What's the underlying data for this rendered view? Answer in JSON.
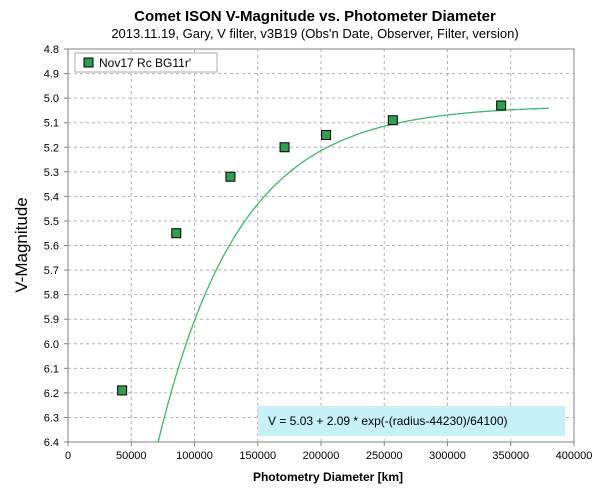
{
  "chart_data": {
    "type": "scatter",
    "title": "Comet ISON V-Magnitude vs. Photometer Diameter",
    "subtitle": "2013.11.19,  Gary, V filter, v3B19 (Obs'n Date, Observer, Filter, version)",
    "xlabel": "Photometry Diameter  [km]",
    "ylabel": "V-Magnitude",
    "xlim": [
      0,
      400000
    ],
    "ylim": [
      6.4,
      4.8
    ],
    "y_inverted": true,
    "x_ticks": [
      "0",
      "50000",
      "100000",
      "150000",
      "200000",
      "250000",
      "300000",
      "350000",
      "400000"
    ],
    "y_ticks": [
      "4.8",
      "4.9",
      "5.0",
      "5.1",
      "5.2",
      "5.3",
      "5.4",
      "5.5",
      "5.6",
      "5.7",
      "5.8",
      "5.9",
      "6.0",
      "6.1",
      "6.2",
      "6.3",
      "6.4"
    ],
    "grid": true,
    "legend_position": "top-left",
    "series": [
      {
        "name": "Nov17 Rc BG11r'",
        "marker": "square",
        "color": "#2e9e4f",
        "x": [
          42800,
          85600,
          128400,
          171200,
          204000,
          256800,
          342400
        ],
        "y": [
          6.19,
          5.55,
          5.32,
          5.2,
          5.15,
          5.09,
          5.03
        ]
      }
    ],
    "fit": {
      "color": "#3fb86a",
      "equation_label": "V = 5.03 + 2.09 * exp(-(radius-44230)/64100)",
      "asymptote": 5.03,
      "amplitude": 2.09,
      "offset": 44230,
      "scale": 64100,
      "x_range": [
        30000,
        380000
      ]
    }
  }
}
